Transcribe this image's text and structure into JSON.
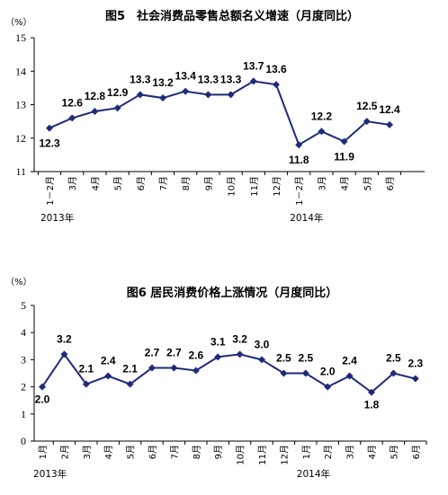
{
  "chart_data": [
    {
      "type": "line",
      "title": "图5　社会消费品零售总额名义增速（月度同比）",
      "ylabel": "（%）",
      "xlabel": "",
      "ylim": [
        11,
        15
      ],
      "yticks": [
        11,
        12,
        13,
        14,
        15
      ],
      "grid": false,
      "categories": [
        "1－2月",
        "3月",
        "4月",
        "5月",
        "6月",
        "7月",
        "8月",
        "9月",
        "10月",
        "11月",
        "12月",
        "1－2月",
        "3月",
        "4月",
        "5月",
        "6月"
      ],
      "year_labels": [
        {
          "label": "2013年",
          "index": 0
        },
        {
          "label": "2014年",
          "index": 11
        }
      ],
      "color": "#1f2a78",
      "series": [
        {
          "values": [
            12.3,
            12.6,
            12.8,
            12.9,
            13.3,
            13.2,
            13.4,
            13.3,
            13.3,
            13.7,
            13.6,
            11.8,
            12.2,
            11.9,
            12.5,
            12.4
          ]
        }
      ],
      "data_labels": [
        "12.3",
        "12.6",
        "12.8",
        "12.9",
        "13.3",
        "13.2",
        "13.4",
        "13.3",
        "13.3",
        "13.7",
        "13.6",
        "11.8",
        "12.2",
        "11.9",
        "12.5",
        "12.4"
      ]
    },
    {
      "type": "line",
      "title": "图6 居民消费价格上涨情况（月度同比）",
      "ylabel": "（%）",
      "xlabel": "",
      "ylim": [
        0,
        5
      ],
      "yticks": [
        0,
        1,
        2,
        3,
        4,
        5
      ],
      "grid": false,
      "categories": [
        "1月",
        "2月",
        "3月",
        "4月",
        "5月",
        "6月",
        "7月",
        "8月",
        "9月",
        "10月",
        "11月",
        "12月",
        "1月",
        "2月",
        "3月",
        "4月",
        "5月",
        "6月"
      ],
      "year_labels": [
        {
          "label": "2013年",
          "index": 0
        },
        {
          "label": "2014年",
          "index": 12
        }
      ],
      "color": "#1f2a78",
      "series": [
        {
          "values": [
            2.0,
            3.2,
            2.1,
            2.4,
            2.1,
            2.7,
            2.7,
            2.6,
            3.1,
            3.2,
            3.0,
            2.5,
            2.5,
            2.0,
            2.4,
            1.8,
            2.5,
            2.3
          ]
        }
      ],
      "data_labels": [
        "2.0",
        "3.2",
        "2.1",
        "2.4",
        "2.1",
        "2.7",
        "2.7",
        "2.6",
        "3.1",
        "3.2",
        "3.0",
        "2.5",
        "2.5",
        "2.0",
        "2.4",
        "1.8",
        "2.5",
        "2.3"
      ]
    }
  ]
}
